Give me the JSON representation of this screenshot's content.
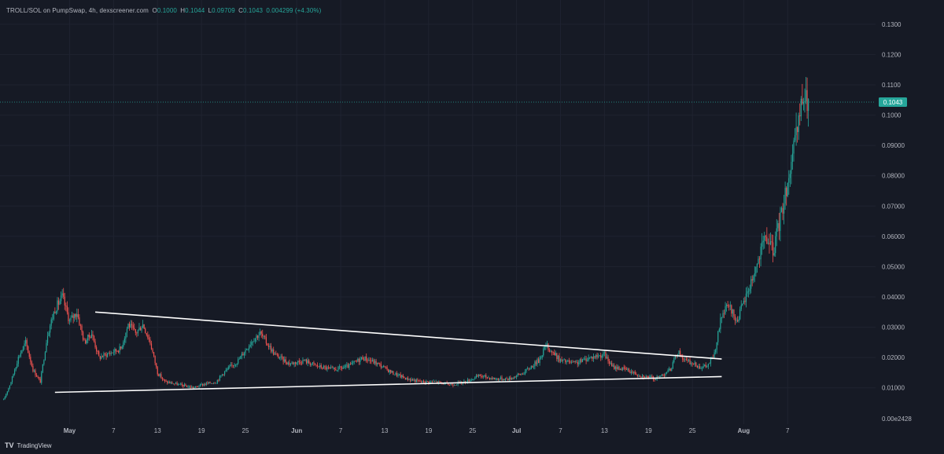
{
  "legend": {
    "symbol": "TROLL/SOL on PumpSwap, 4h, dexscreener.com",
    "o_label": "O",
    "o": "0.1000",
    "h_label": "H",
    "h": "0.1044",
    "l_label": "L",
    "l": "0.09709",
    "c_label": "C",
    "c": "0.1043",
    "change": "0.004299 (+4.30%)"
  },
  "footer": {
    "brand": "TradingView",
    "logo_glyph": "TV"
  },
  "colors": {
    "bg": "#161a25",
    "grid": "#1f2330",
    "up": "#26a69a",
    "down": "#ef5350",
    "trend": "#ffffff",
    "axis_text": "#b2b5be"
  },
  "chart_data": {
    "type": "candlestick",
    "interval": "4h",
    "y_ticks": [
      "0.1300",
      "0.1200",
      "0.1100",
      "0.1000",
      "0.09000",
      "0.08000",
      "0.07000",
      "0.06000",
      "0.05000",
      "0.04000",
      "0.03000",
      "0.02000",
      "0.01000"
    ],
    "y_tick_values": [
      0.13,
      0.12,
      0.11,
      0.1,
      0.09,
      0.08,
      0.07,
      0.06,
      0.05,
      0.04,
      0.03,
      0.02,
      0.01
    ],
    "y_bottom_label": "0.00e2428",
    "ylim": [
      -0.002,
      0.138
    ],
    "x_ticks": [
      {
        "label": "May",
        "day": 1,
        "bold": true
      },
      {
        "label": "7",
        "day": 7
      },
      {
        "label": "13",
        "day": 13
      },
      {
        "label": "19",
        "day": 19
      },
      {
        "label": "25",
        "day": 25
      },
      {
        "label": "Jun",
        "day": 32,
        "bold": true
      },
      {
        "label": "7",
        "day": 38
      },
      {
        "label": "13",
        "day": 44
      },
      {
        "label": "19",
        "day": 50
      },
      {
        "label": "25",
        "day": 56
      },
      {
        "label": "Jul",
        "day": 62,
        "bold": true
      },
      {
        "label": "7",
        "day": 68
      },
      {
        "label": "13",
        "day": 74
      },
      {
        "label": "19",
        "day": 80
      },
      {
        "label": "25",
        "day": 86
      },
      {
        "label": "Aug",
        "day": 93,
        "bold": true
      },
      {
        "label": "7",
        "day": 99
      }
    ],
    "xlim": [
      -8.5,
      111
    ],
    "last_price": "0.1043",
    "last_price_value": 0.1043,
    "anchors": [
      [
        -8,
        0.006
      ],
      [
        -7,
        0.012
      ],
      [
        -6,
        0.02
      ],
      [
        -5,
        0.025
      ],
      [
        -4,
        0.016
      ],
      [
        -3,
        0.012
      ],
      [
        -2,
        0.028
      ],
      [
        -1,
        0.036
      ],
      [
        0,
        0.04
      ],
      [
        1,
        0.032
      ],
      [
        2,
        0.035
      ],
      [
        3,
        0.025
      ],
      [
        4,
        0.028
      ],
      [
        5,
        0.02
      ],
      [
        6,
        0.021
      ],
      [
        8,
        0.023
      ],
      [
        9,
        0.031
      ],
      [
        10,
        0.028
      ],
      [
        11,
        0.031
      ],
      [
        12,
        0.025
      ],
      [
        13,
        0.015
      ],
      [
        14,
        0.012
      ],
      [
        16,
        0.011
      ],
      [
        18,
        0.01
      ],
      [
        19,
        0.011
      ],
      [
        21,
        0.012
      ],
      [
        22,
        0.015
      ],
      [
        24,
        0.019
      ],
      [
        26,
        0.026
      ],
      [
        27,
        0.028
      ],
      [
        29,
        0.021
      ],
      [
        31,
        0.018
      ],
      [
        33,
        0.019
      ],
      [
        35,
        0.017
      ],
      [
        37,
        0.016
      ],
      [
        39,
        0.017
      ],
      [
        41,
        0.02
      ],
      [
        43,
        0.018
      ],
      [
        45,
        0.015
      ],
      [
        47,
        0.013
      ],
      [
        49,
        0.012
      ],
      [
        51,
        0.012
      ],
      [
        53,
        0.011
      ],
      [
        55,
        0.012
      ],
      [
        57,
        0.014
      ],
      [
        59,
        0.013
      ],
      [
        61,
        0.013
      ],
      [
        63,
        0.015
      ],
      [
        65,
        0.019
      ],
      [
        66,
        0.024
      ],
      [
        68,
        0.019
      ],
      [
        70,
        0.018
      ],
      [
        72,
        0.02
      ],
      [
        74,
        0.021
      ],
      [
        75,
        0.017
      ],
      [
        77,
        0.016
      ],
      [
        79,
        0.014
      ],
      [
        81,
        0.013
      ],
      [
        83,
        0.016
      ],
      [
        84,
        0.022
      ],
      [
        85,
        0.019
      ],
      [
        87,
        0.017
      ],
      [
        88,
        0.017
      ],
      [
        89,
        0.021
      ],
      [
        90,
        0.034
      ],
      [
        91,
        0.037
      ],
      [
        92,
        0.032
      ],
      [
        93,
        0.038
      ],
      [
        94,
        0.045
      ],
      [
        95,
        0.052
      ],
      [
        96,
        0.06
      ],
      [
        97,
        0.055
      ],
      [
        98,
        0.066
      ],
      [
        99,
        0.078
      ],
      [
        100,
        0.09
      ],
      [
        101,
        0.105
      ],
      [
        102,
        0.1043
      ]
    ]
  },
  "trendlines": [
    {
      "from": [
        4.5,
        0.035
      ],
      "to": [
        90,
        0.0195
      ]
    },
    {
      "from": [
        -1,
        0.0085
      ],
      "to": [
        90,
        0.0137
      ]
    }
  ]
}
